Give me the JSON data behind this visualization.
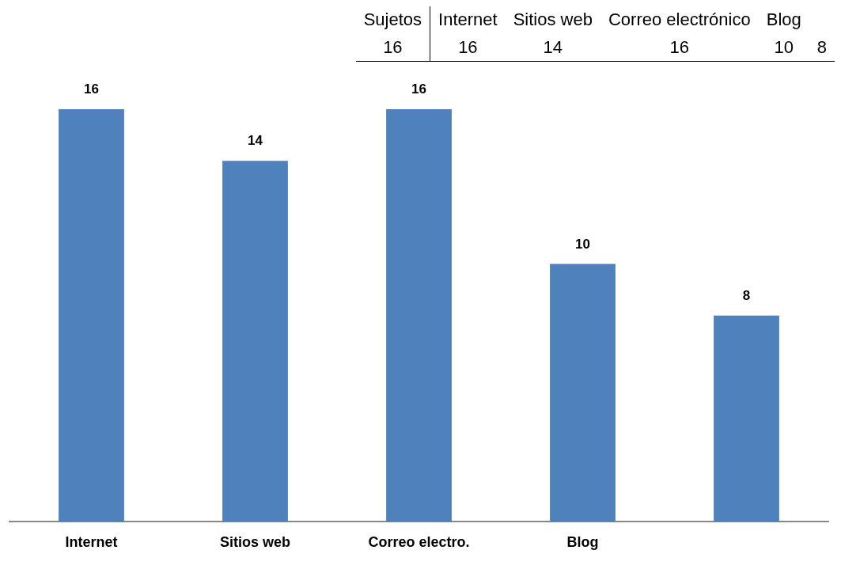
{
  "chart_data": {
    "type": "bar",
    "categories": [
      "Internet",
      "Sitios web",
      "Correo electro.",
      "Blog",
      null
    ],
    "values": [
      16,
      14,
      16,
      10,
      8
    ],
    "color": "#4f81bd",
    "data_labels": true,
    "grid": false,
    "legend": false,
    "tick_labels": "x",
    "annotations": [
      "Sujetos",
      "Internet",
      "Sitios web",
      "Correo electrónico",
      "Blog",
      "16",
      "16",
      "14",
      "16",
      "10",
      "8"
    ]
  }
}
